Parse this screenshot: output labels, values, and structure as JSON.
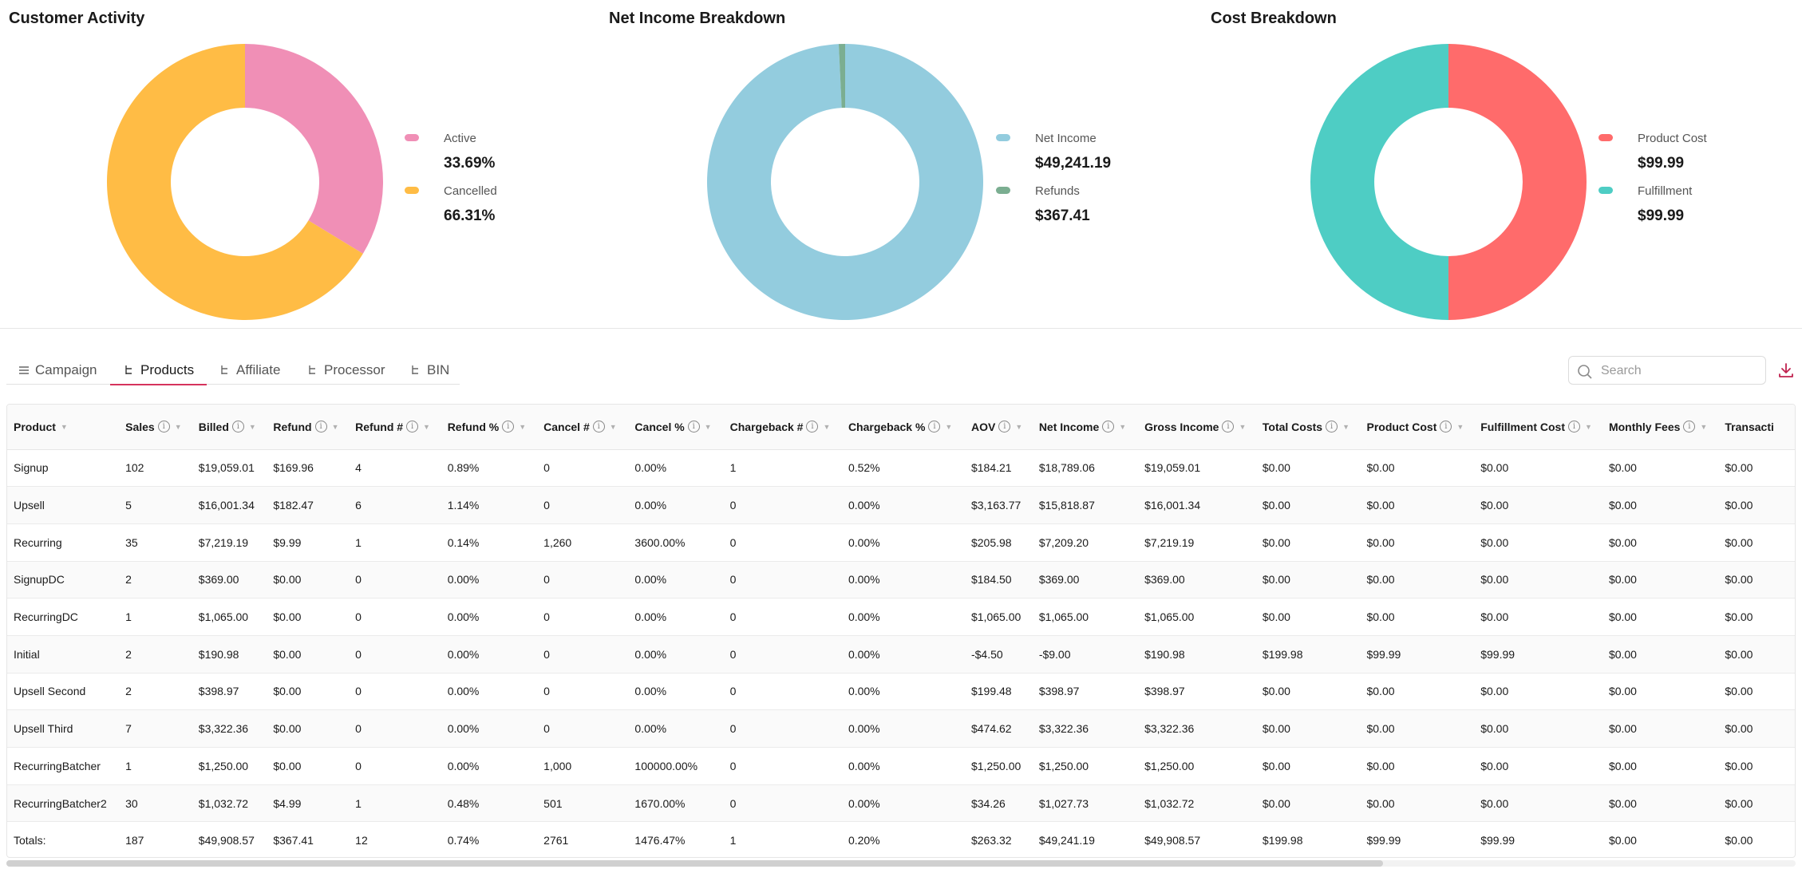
{
  "charts": [
    {
      "title": "Customer Activity",
      "items": [
        {
          "label": "Active",
          "value": "33.69%",
          "color": "#F08FB6",
          "fraction": 0.3369
        },
        {
          "label": "Cancelled",
          "value": "66.31%",
          "color": "#FFBC45",
          "fraction": 0.6631
        }
      ]
    },
    {
      "title": "Net Income Breakdown",
      "items": [
        {
          "label": "Net Income",
          "value": "$49,241.19",
          "color": "#93CCDE",
          "fraction": 0.9926
        },
        {
          "label": "Refunds",
          "value": "$367.41",
          "color": "#7BAE91",
          "fraction": 0.0074
        }
      ]
    },
    {
      "title": "Cost Breakdown",
      "items": [
        {
          "label": "Product Cost",
          "value": "$99.99",
          "color": "#FF6B6B",
          "fraction": 0.5
        },
        {
          "label": "Fulfillment",
          "value": "$99.99",
          "color": "#4ECDC4",
          "fraction": 0.5
        }
      ]
    }
  ],
  "tabs": [
    {
      "label": "Campaign",
      "icon": "list-icon",
      "active": false
    },
    {
      "label": "Products",
      "icon": "tree-icon",
      "active": true
    },
    {
      "label": "Affiliate",
      "icon": "tree-icon",
      "active": false
    },
    {
      "label": "Processor",
      "icon": "tree-icon",
      "active": false
    },
    {
      "label": "BIN",
      "icon": "tree-icon",
      "active": false
    }
  ],
  "search": {
    "placeholder": "Search",
    "value": ""
  },
  "table": {
    "columns": [
      {
        "label": "Product",
        "info": false
      },
      {
        "label": "Sales",
        "info": true
      },
      {
        "label": "Billed",
        "info": true
      },
      {
        "label": "Refund",
        "info": true
      },
      {
        "label": "Refund #",
        "info": true
      },
      {
        "label": "Refund %",
        "info": true
      },
      {
        "label": "Cancel #",
        "info": true
      },
      {
        "label": "Cancel %",
        "info": true
      },
      {
        "label": "Chargeback #",
        "info": true
      },
      {
        "label": "Chargeback %",
        "info": true
      },
      {
        "label": "AOV",
        "info": true
      },
      {
        "label": "Net Income",
        "info": true
      },
      {
        "label": "Gross Income",
        "info": true
      },
      {
        "label": "Total Costs",
        "info": true
      },
      {
        "label": "Product Cost",
        "info": true
      },
      {
        "label": "Fulfillment Cost",
        "info": true
      },
      {
        "label": "Monthly Fees",
        "info": true
      },
      {
        "label": "Transacti",
        "info": false
      }
    ],
    "rows": [
      [
        "Signup",
        "102",
        "$19,059.01",
        "$169.96",
        "4",
        "0.89%",
        "0",
        "0.00%",
        "1",
        "0.52%",
        "$184.21",
        "$18,789.06",
        "$19,059.01",
        "$0.00",
        "$0.00",
        "$0.00",
        "$0.00",
        "$0.00"
      ],
      [
        "Upsell",
        "5",
        "$16,001.34",
        "$182.47",
        "6",
        "1.14%",
        "0",
        "0.00%",
        "0",
        "0.00%",
        "$3,163.77",
        "$15,818.87",
        "$16,001.34",
        "$0.00",
        "$0.00",
        "$0.00",
        "$0.00",
        "$0.00"
      ],
      [
        "Recurring",
        "35",
        "$7,219.19",
        "$9.99",
        "1",
        "0.14%",
        "1,260",
        "3600.00%",
        "0",
        "0.00%",
        "$205.98",
        "$7,209.20",
        "$7,219.19",
        "$0.00",
        "$0.00",
        "$0.00",
        "$0.00",
        "$0.00"
      ],
      [
        "SignupDC",
        "2",
        "$369.00",
        "$0.00",
        "0",
        "0.00%",
        "0",
        "0.00%",
        "0",
        "0.00%",
        "$184.50",
        "$369.00",
        "$369.00",
        "$0.00",
        "$0.00",
        "$0.00",
        "$0.00",
        "$0.00"
      ],
      [
        "RecurringDC",
        "1",
        "$1,065.00",
        "$0.00",
        "0",
        "0.00%",
        "0",
        "0.00%",
        "0",
        "0.00%",
        "$1,065.00",
        "$1,065.00",
        "$1,065.00",
        "$0.00",
        "$0.00",
        "$0.00",
        "$0.00",
        "$0.00"
      ],
      [
        "Initial",
        "2",
        "$190.98",
        "$0.00",
        "0",
        "0.00%",
        "0",
        "0.00%",
        "0",
        "0.00%",
        "-$4.50",
        "-$9.00",
        "$190.98",
        "$199.98",
        "$99.99",
        "$99.99",
        "$0.00",
        "$0.00"
      ],
      [
        "Upsell Second",
        "2",
        "$398.97",
        "$0.00",
        "0",
        "0.00%",
        "0",
        "0.00%",
        "0",
        "0.00%",
        "$199.48",
        "$398.97",
        "$398.97",
        "$0.00",
        "$0.00",
        "$0.00",
        "$0.00",
        "$0.00"
      ],
      [
        "Upsell Third",
        "7",
        "$3,322.36",
        "$0.00",
        "0",
        "0.00%",
        "0",
        "0.00%",
        "0",
        "0.00%",
        "$474.62",
        "$3,322.36",
        "$3,322.36",
        "$0.00",
        "$0.00",
        "$0.00",
        "$0.00",
        "$0.00"
      ],
      [
        "RecurringBatcher",
        "1",
        "$1,250.00",
        "$0.00",
        "0",
        "0.00%",
        "1,000",
        "100000.00%",
        "0",
        "0.00%",
        "$1,250.00",
        "$1,250.00",
        "$1,250.00",
        "$0.00",
        "$0.00",
        "$0.00",
        "$0.00",
        "$0.00"
      ],
      [
        "RecurringBatcher2",
        "30",
        "$1,032.72",
        "$4.99",
        "1",
        "0.48%",
        "501",
        "1670.00%",
        "0",
        "0.00%",
        "$34.26",
        "$1,027.73",
        "$1,032.72",
        "$0.00",
        "$0.00",
        "$0.00",
        "$0.00",
        "$0.00"
      ]
    ],
    "totals": [
      "Totals:",
      "187",
      "$49,908.57",
      "$367.41",
      "12",
      "0.74%",
      "2761",
      "1476.47%",
      "1",
      "0.20%",
      "$263.32",
      "$49,241.19",
      "$49,908.57",
      "$199.98",
      "$99.99",
      "$99.99",
      "$0.00",
      "$0.00"
    ]
  }
}
